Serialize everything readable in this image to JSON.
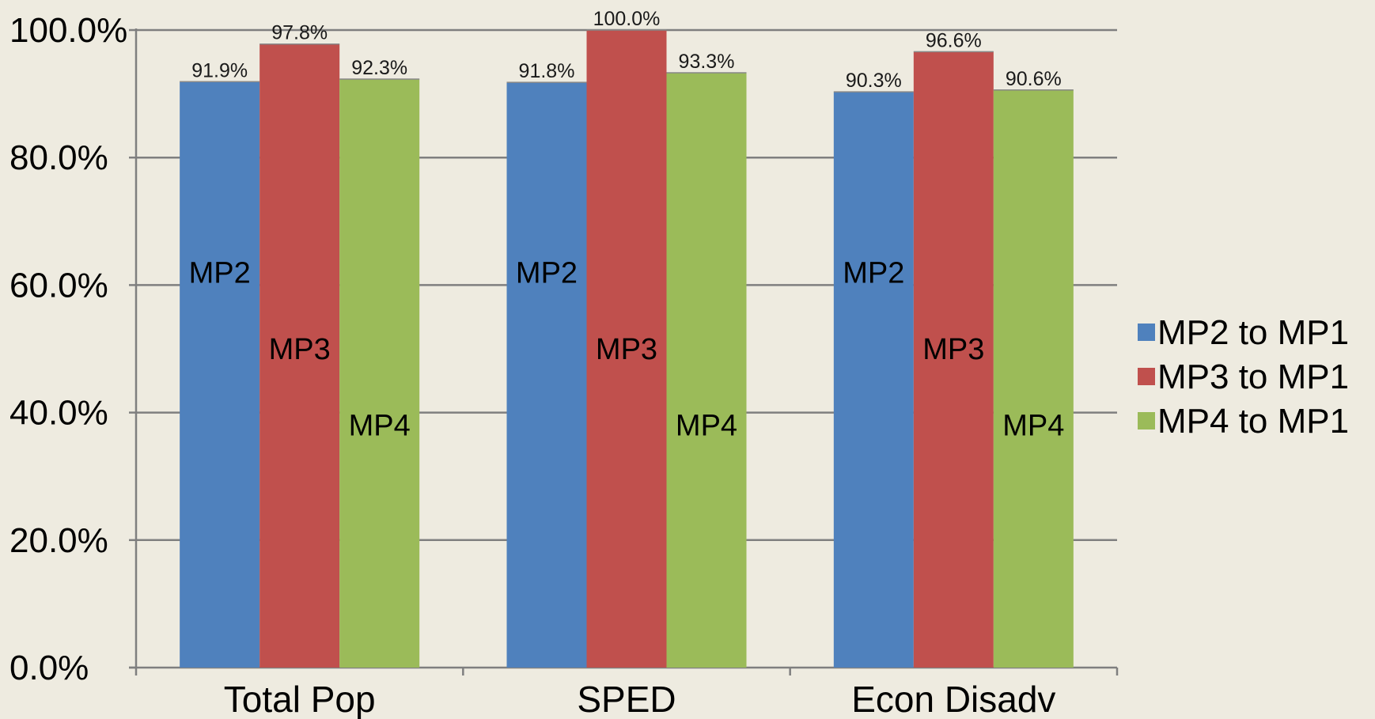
{
  "chart_data": {
    "type": "bar",
    "title": "",
    "xlabel": "",
    "ylabel": "",
    "categories": [
      "Total Pop",
      "SPED",
      "Econ Disadv"
    ],
    "series": [
      {
        "name": "MP2 to MP1",
        "short": "MP2",
        "color": "#4f81bd",
        "values": [
          91.9,
          91.8,
          90.3
        ],
        "labels": [
          "91.9%",
          "91.8%",
          "90.3%"
        ]
      },
      {
        "name": "MP3 to MP1",
        "short": "MP3",
        "color": "#c0504d",
        "values": [
          97.8,
          100.0,
          96.6
        ],
        "labels": [
          "97.8%",
          "100.0%",
          "96.6%"
        ]
      },
      {
        "name": "MP4 to MP1",
        "short": "MP4",
        "color": "#9bbb59",
        "values": [
          92.3,
          93.3,
          90.6
        ],
        "labels": [
          "92.3%",
          "93.3%",
          "90.6%"
        ]
      }
    ],
    "ylim": [
      0,
      100
    ],
    "yticks": [
      0,
      20,
      40,
      60,
      80,
      100
    ],
    "ytick_labels": [
      "0.0%",
      "20.0%",
      "40.0%",
      "60.0%",
      "80.0%",
      "100.0%"
    ],
    "grid": true,
    "legend": "right",
    "background_color": "#eeebe0",
    "gridline_color": "#7f7f7f"
  }
}
